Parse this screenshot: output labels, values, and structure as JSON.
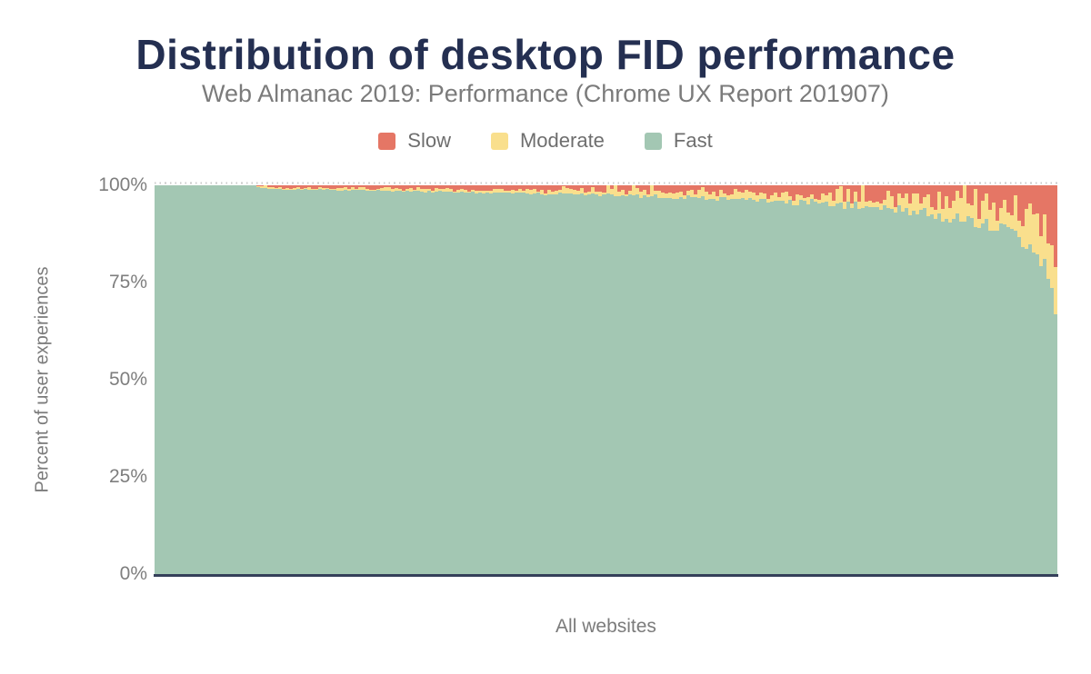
{
  "colors": {
    "title": "#242f51",
    "muted_text": "#7b7b7b",
    "axis": "#35405a",
    "gridline": "#c9c9c9",
    "background": "#ffffff"
  },
  "chart_data": {
    "type": "area",
    "variant": "stacked-100pct-distribution-per-website",
    "title": "Distribution of desktop FID performance",
    "subtitle": "Web Almanac 2019: Performance (Chrome UX Report 201907)",
    "xlabel": "All websites",
    "ylabel": "Percent of user experiences",
    "ylim": [
      0,
      100
    ],
    "yticks": [
      "100%",
      "75%",
      "50%",
      "25%",
      "0%"
    ],
    "legend_position": "top",
    "grid": "dotted line at 100% only; solid dark axis at 0%",
    "series": [
      {
        "name": "Slow",
        "color": "#e57665"
      },
      {
        "name": "Moderate",
        "color": "#f9df8d"
      },
      {
        "name": "Fast",
        "color": "#a3c7b3"
      }
    ],
    "stacking_note": "bars sorted by Fast descending; slow = 100 - fast - moderate",
    "control_points": {
      "x_fraction_of_websites": [
        0,
        0.1,
        0.115,
        0.15,
        0.2,
        0.3,
        0.4,
        0.5,
        0.6,
        0.69,
        0.78,
        0.84,
        0.9,
        0.94,
        0.96,
        0.975,
        0.985,
        0.993,
        1.0
      ],
      "fast": [
        100,
        100,
        99.3,
        99.0,
        98.8,
        98.4,
        98.0,
        97.5,
        96.8,
        96.0,
        94.6,
        93.2,
        91.2,
        89.0,
        86.8,
        84.0,
        80.5,
        76.0,
        69.0
      ],
      "moderate": [
        0,
        0,
        0.3,
        0.4,
        0.45,
        0.6,
        0.8,
        1.0,
        1.3,
        1.7,
        2.3,
        3.2,
        4.4,
        5.2,
        6.4,
        8.0,
        10.0,
        12.0,
        14.0
      ]
    },
    "render": {
      "bars": 248,
      "seed": 201907,
      "pure_fast_until": 0.113,
      "fast_jitter": [
        0.15,
        2.2
      ],
      "moderate_jitter": [
        0.25,
        3.2
      ],
      "spike": {
        "threshold": 0.45,
        "prob": 0.12,
        "base": 1.0,
        "scale": 5.0
      }
    }
  }
}
